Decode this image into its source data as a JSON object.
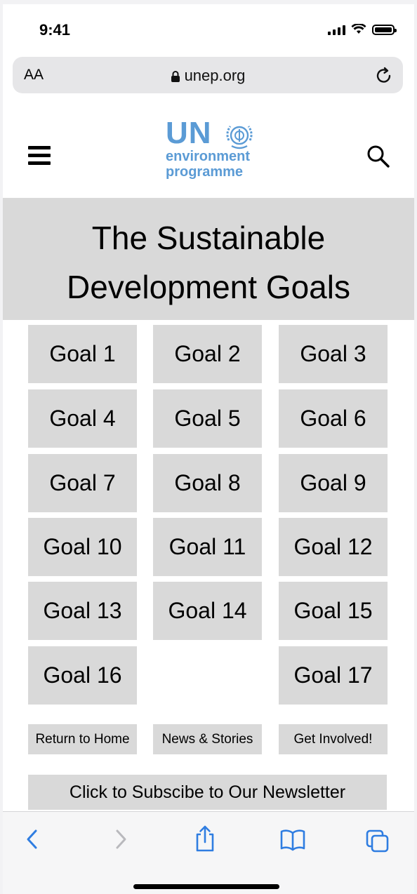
{
  "status_bar": {
    "time": "9:41"
  },
  "browser": {
    "text_size_label": "AA",
    "url": "unep.org"
  },
  "site": {
    "logo": {
      "abbrev": "UN",
      "line1": "environment",
      "line2": "programme"
    },
    "title_line1": "The Sustainable",
    "title_line2": "Development Goals"
  },
  "goals": [
    "Goal 1",
    "Goal 2",
    "Goal 3",
    "Goal 4",
    "Goal 5",
    "Goal 6",
    "Goal 7",
    "Goal 8",
    "Goal 9",
    "Goal 10",
    "Goal 11",
    "Goal 12",
    "Goal 13",
    "Goal 14",
    "Goal 15",
    "Goal 16",
    "Goal 17"
  ],
  "links": {
    "return_home": "Return to Home",
    "news_stories": "News & Stories",
    "get_involved": "Get Involved!",
    "newsletter": "Click to Subscibe to Our Newsletter"
  },
  "colors": {
    "accent": "#5b9bd5",
    "toolbar_icon": "#2f7de1",
    "tile_bg": "#d9d9d9"
  },
  "icons": {
    "back": "chevron-left-icon",
    "forward": "chevron-right-icon",
    "share": "share-icon",
    "bookmarks": "book-icon",
    "tabs": "tabs-icon"
  }
}
